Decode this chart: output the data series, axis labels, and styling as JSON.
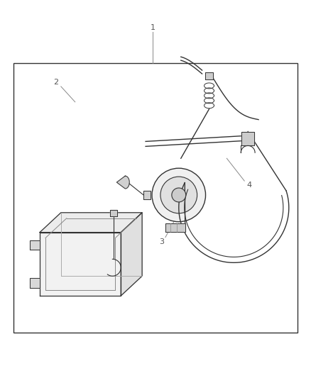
{
  "background_color": "#ffffff",
  "border_color": "#333333",
  "line_color": "#333333",
  "label_color": "#555555",
  "leader_line_color": "#888888",
  "fig_width": 4.38,
  "fig_height": 5.33,
  "dpi": 100
}
